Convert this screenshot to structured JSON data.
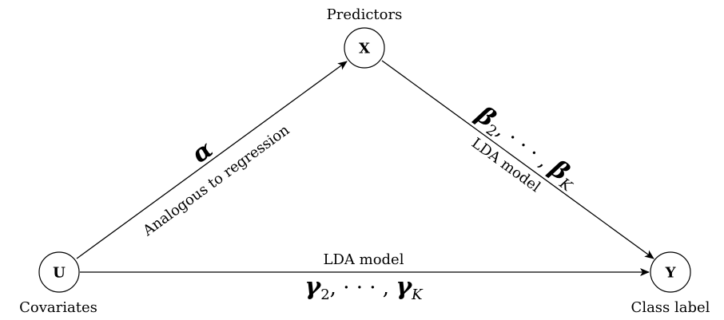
{
  "nodes": {
    "u": {
      "symbol": "U",
      "label": "Covariates"
    },
    "x": {
      "symbol": "X",
      "label": "Predictors"
    },
    "y": {
      "symbol": "Y",
      "label": "Class label"
    }
  },
  "edges": {
    "u_to_x": {
      "caption": "Analogous to regression",
      "param": "α"
    },
    "x_to_y": {
      "caption": "LDA model",
      "param_symbol": "β",
      "param_first_sub": "2",
      "param_sep": ", · · · , ",
      "param_last_sub": "K"
    },
    "u_to_y": {
      "caption": "LDA model",
      "param_symbol": "γ",
      "param_first_sub": "2",
      "param_sep": ", · · · , ",
      "param_last_sub": "K"
    }
  },
  "colors": {
    "stroke": "#000000",
    "background": "#ffffff"
  }
}
